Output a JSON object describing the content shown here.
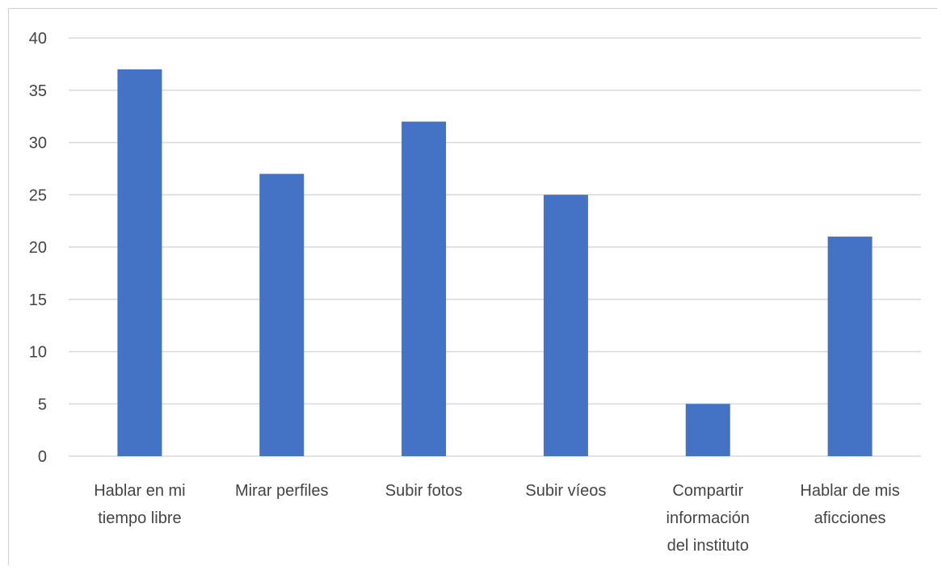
{
  "chart_data": {
    "type": "bar",
    "categories": [
      [
        "Hablar en mi",
        "tiempo libre"
      ],
      [
        "Mirar perfiles"
      ],
      [
        "Subir fotos"
      ],
      [
        "Subir víeos"
      ],
      [
        "Compartir",
        "información",
        "del instituto"
      ],
      [
        "Hablar de mis",
        "aficciones"
      ]
    ],
    "values": [
      37,
      27,
      32,
      25,
      5,
      21
    ],
    "ylim": [
      0,
      40
    ],
    "yticks": [
      0,
      5,
      10,
      15,
      20,
      25,
      30,
      35,
      40
    ],
    "grid": true,
    "legend": "none",
    "colors": {
      "bar": "#4472C4",
      "grid": "#d9d9d9",
      "text": "#444444"
    }
  }
}
